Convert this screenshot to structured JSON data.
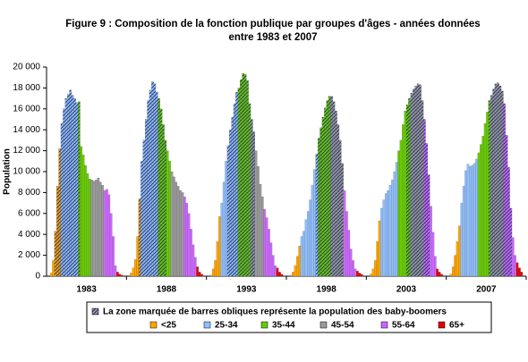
{
  "chart_data": {
    "type": "bar",
    "title": "Figure 9 : Composition de la fonction publique par groupes d'âges - années données",
    "subtitle": "entre 1983 et 2007",
    "y_label": "Population",
    "legend_note": "La zone marquée de barres obliques représente la population des baby-boomers",
    "categories": [
      "1983",
      "1988",
      "1993",
      "1998",
      "2003",
      "2007"
    ],
    "ylim": [
      0,
      20000
    ],
    "yticks": [
      0,
      {
        "value": 2000,
        "label": "2 000"
      },
      {
        "value": 4000,
        "label": "4 000"
      },
      {
        "value": 6000,
        "label": "6 000"
      },
      {
        "value": 8000,
        "label": "8 000"
      },
      {
        "value": 10000,
        "label": "10 000"
      },
      {
        "value": 12000,
        "label": "12 000"
      },
      {
        "value": 14000,
        "label": "14 000"
      },
      {
        "value": 16000,
        "label": "16 000"
      },
      {
        "value": 18000,
        "label": "18 000"
      },
      {
        "value": 20000,
        "label": "20 000"
      }
    ],
    "series": [
      {
        "name": "<25",
        "color": "#ffa500",
        "values": [
          [
            300,
            1500,
            4300,
            8600,
            12200
          ],
          [
            300,
            800,
            1600,
            3800,
            7400
          ],
          [
            100,
            700,
            1500,
            3300,
            5700
          ],
          [
            100,
            400,
            1000,
            1900,
            2900
          ],
          [
            200,
            700,
            1500,
            3300,
            5300
          ],
          [
            200,
            900,
            2000,
            3300,
            4800
          ]
        ],
        "hatched": [
          [
            0,
            0,
            1,
            1,
            1
          ],
          [
            0,
            0,
            0,
            0,
            1
          ],
          [
            0,
            0,
            0,
            0,
            0
          ],
          [
            0,
            0,
            0,
            0,
            0
          ],
          [
            0,
            0,
            0,
            0,
            0
          ],
          [
            0,
            0,
            0,
            0,
            0
          ]
        ]
      },
      {
        "name": "25-34",
        "color": "#8fbfff",
        "values": [
          [
            14600,
            16000,
            17000,
            17400,
            17800,
            17300,
            17000,
            16600
          ],
          [
            11000,
            13000,
            15000,
            16800,
            17800,
            18600,
            18400,
            17600
          ],
          [
            7000,
            9000,
            11000,
            12500,
            14000,
            15200,
            16500,
            17600
          ],
          [
            3800,
            4300,
            5400,
            6200,
            7300,
            8700,
            10200,
            11700
          ],
          [
            6500,
            7300,
            7900,
            8200,
            8700,
            9200,
            10000,
            10900
          ],
          [
            7000,
            8600,
            10100,
            10700,
            10500,
            10600,
            10800,
            11200
          ]
        ],
        "hatched": [
          [
            1,
            1,
            1,
            1,
            1,
            1,
            1,
            1
          ],
          [
            1,
            1,
            1,
            1,
            1,
            1,
            1,
            1
          ],
          [
            0,
            0,
            0,
            1,
            1,
            1,
            1,
            1
          ],
          [
            0,
            0,
            0,
            0,
            0,
            0,
            0,
            1
          ],
          [
            0,
            0,
            0,
            0,
            0,
            0,
            0,
            0
          ],
          [
            0,
            0,
            0,
            0,
            0,
            0,
            0,
            0
          ]
        ]
      },
      {
        "name": "35-44",
        "color": "#66cc00",
        "values": [
          [
            16700,
            12400,
            11600,
            10600,
            9800,
            9300
          ],
          [
            17000,
            16000,
            14500,
            13000,
            12000,
            11000
          ],
          [
            18000,
            18800,
            19400,
            19300,
            18700,
            16500
          ],
          [
            13200,
            14200,
            15200,
            16100,
            16800,
            17200
          ],
          [
            12000,
            13000,
            14500,
            15800,
            16400,
            17000
          ],
          [
            11800,
            12600,
            13400,
            14600,
            15700,
            16800
          ]
        ],
        "hatched": [
          [
            1,
            0,
            0,
            0,
            0,
            0
          ],
          [
            1,
            1,
            1,
            1,
            0,
            0
          ],
          [
            1,
            1,
            1,
            1,
            1,
            1
          ],
          [
            1,
            1,
            1,
            1,
            1,
            1
          ],
          [
            0,
            0,
            0,
            0,
            1,
            1
          ],
          [
            0,
            0,
            0,
            0,
            0,
            1
          ]
        ]
      },
      {
        "name": "45-54",
        "color": "#999999",
        "values": [
          [
            9200,
            9100,
            9200,
            9400,
            9000,
            8700
          ],
          [
            10000,
            9500,
            9000,
            8600,
            8200,
            8000
          ],
          [
            15000,
            13800,
            12000,
            10500,
            8800,
            7600
          ],
          [
            17200,
            16700,
            15800,
            14500,
            13000,
            10800
          ],
          [
            17500,
            17900,
            18200,
            18400,
            18300,
            16800
          ],
          [
            17300,
            17900,
            18400,
            18500,
            18200,
            17700
          ]
        ],
        "hatched": [
          [
            0,
            0,
            0,
            0,
            0,
            0
          ],
          [
            0,
            0,
            0,
            0,
            0,
            0
          ],
          [
            1,
            1,
            0,
            0,
            0,
            0
          ],
          [
            1,
            1,
            1,
            1,
            1,
            1
          ],
          [
            1,
            1,
            1,
            1,
            1,
            1
          ],
          [
            1,
            1,
            1,
            1,
            1,
            1
          ]
        ]
      },
      {
        "name": "55-64",
        "color": "#cc66ff",
        "values": [
          [
            8200,
            8300,
            7800,
            6000,
            3800,
            1000
          ],
          [
            7600,
            7000,
            6000,
            4500,
            3000,
            1800
          ],
          [
            6400,
            5600,
            4500,
            3200,
            2000,
            1000
          ],
          [
            8200,
            6200,
            4400,
            2600,
            1500,
            700
          ],
          [
            15000,
            12700,
            9700,
            6700,
            4200,
            1900
          ],
          [
            16500,
            13500,
            10400,
            6500,
            3700,
            2000
          ]
        ],
        "hatched": [
          [
            0,
            0,
            0,
            0,
            0,
            0
          ],
          [
            0,
            0,
            0,
            0,
            0,
            0
          ],
          [
            0,
            0,
            0,
            0,
            0,
            0
          ],
          [
            0,
            0,
            0,
            0,
            0,
            0
          ],
          [
            1,
            1,
            1,
            0,
            0,
            0
          ],
          [
            1,
            1,
            1,
            1,
            0,
            0
          ]
        ]
      },
      {
        "name": "65+",
        "color": "#e00000",
        "values": [
          [
            400,
            200,
            100
          ],
          [
            900,
            400,
            200
          ],
          [
            800,
            400,
            200
          ],
          [
            500,
            300,
            200
          ],
          [
            700,
            400,
            200
          ],
          [
            1300,
            800,
            400
          ]
        ],
        "hatched": [
          [
            0,
            0,
            0
          ],
          [
            0,
            0,
            0
          ],
          [
            0,
            0,
            0
          ],
          [
            0,
            0,
            0
          ],
          [
            0,
            0,
            0
          ],
          [
            0,
            0,
            0
          ]
        ]
      }
    ]
  }
}
